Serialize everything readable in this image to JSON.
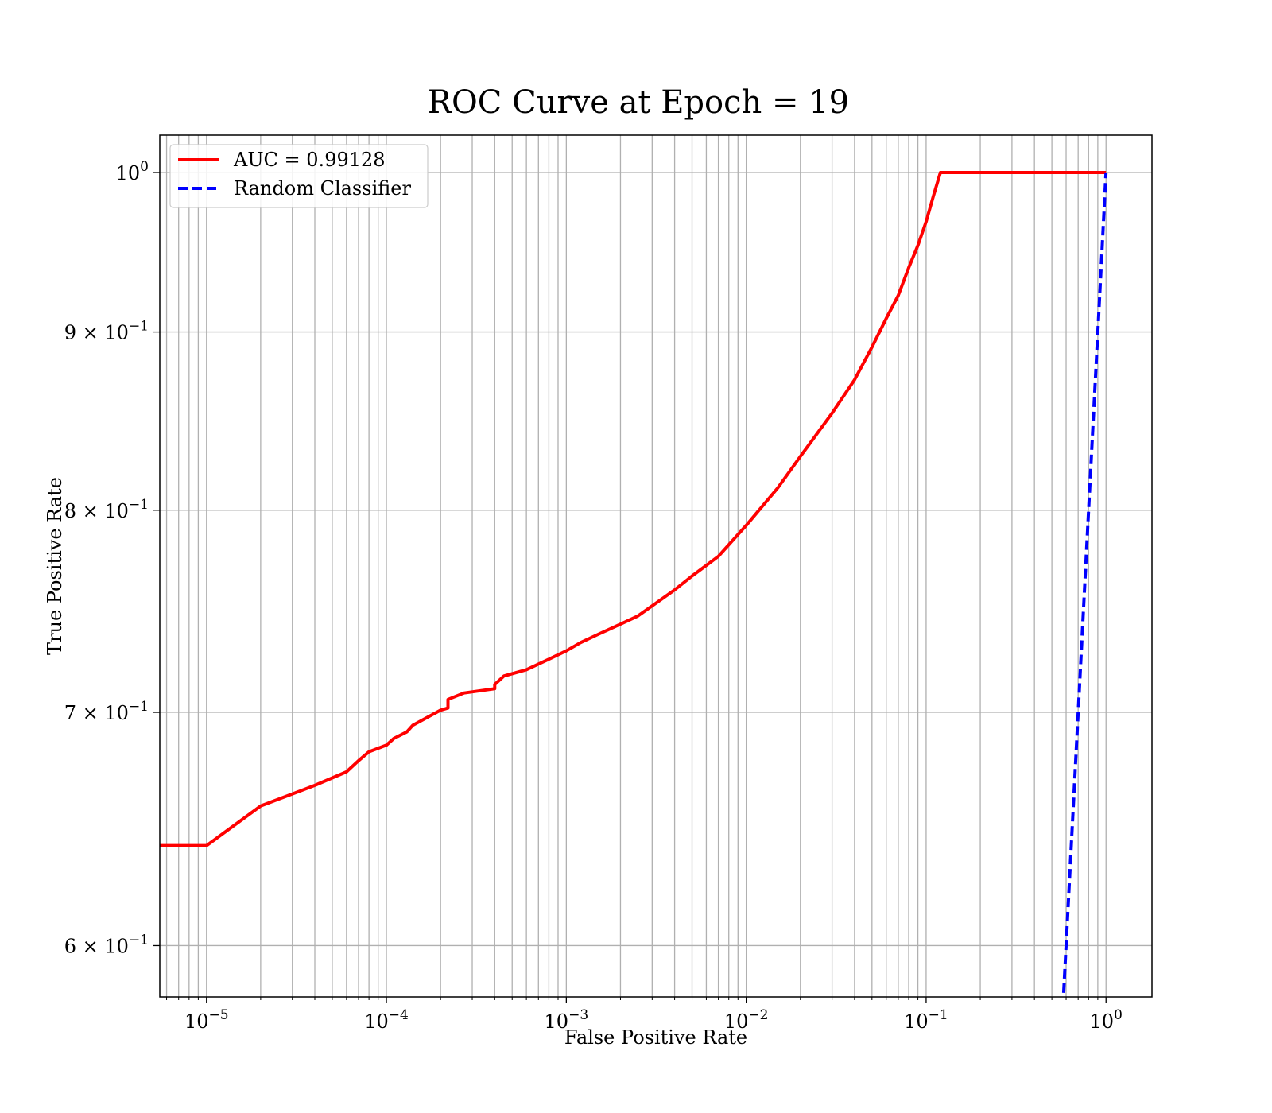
{
  "chart_data": {
    "type": "line",
    "title": "ROC Curve at Epoch = 19",
    "xlabel": "False Positive Rate",
    "ylabel": "True Positive Rate",
    "xscale": "log",
    "yscale": "log",
    "xlim": [
      5.5e-06,
      1.8
    ],
    "ylim": [
      0.58,
      1.025
    ],
    "grid": "both-major-and-minor-x",
    "legend_position": "top-left",
    "x_ticks": [
      {
        "value": 1e-05,
        "base": "10",
        "exp": "−5"
      },
      {
        "value": 0.0001,
        "base": "10",
        "exp": "−4"
      },
      {
        "value": 0.001,
        "base": "10",
        "exp": "−3"
      },
      {
        "value": 0.01,
        "base": "10",
        "exp": "−2"
      },
      {
        "value": 0.1,
        "base": "10",
        "exp": "−1"
      },
      {
        "value": 1,
        "base": "10",
        "exp": "0"
      }
    ],
    "y_ticks": [
      {
        "value": 1.0,
        "base": "10",
        "exp": "0"
      },
      {
        "value": 0.9,
        "base": "9 × 10",
        "exp": "−1"
      },
      {
        "value": 0.8,
        "base": "8 × 10",
        "exp": "−1"
      },
      {
        "value": 0.7,
        "base": "7 × 10",
        "exp": "−1"
      },
      {
        "value": 0.6,
        "base": "6 × 10",
        "exp": "−1"
      }
    ],
    "series": [
      {
        "name": "AUC = 0.99128",
        "color": "#ff0000",
        "style": "solid",
        "x": [
          5.5e-06,
          1e-05,
          2e-05,
          4e-05,
          6e-05,
          7e-05,
          8e-05,
          0.0001,
          0.00011,
          0.00013,
          0.00014,
          0.0002,
          0.00022,
          0.00022,
          0.00027,
          0.0004,
          0.0004,
          0.00045,
          0.0006,
          0.0008,
          0.001,
          0.0012,
          0.0015,
          0.002,
          0.0025,
          0.003,
          0.004,
          0.005,
          0.007,
          0.01,
          0.015,
          0.02,
          0.03,
          0.04,
          0.05,
          0.06,
          0.07,
          0.08,
          0.09,
          0.1,
          0.11,
          0.12,
          0.2,
          0.5,
          1.0
        ],
        "y": [
          0.641,
          0.641,
          0.658,
          0.667,
          0.673,
          0.678,
          0.682,
          0.685,
          0.688,
          0.691,
          0.694,
          0.701,
          0.702,
          0.706,
          0.709,
          0.711,
          0.713,
          0.717,
          0.72,
          0.725,
          0.729,
          0.733,
          0.737,
          0.742,
          0.746,
          0.751,
          0.759,
          0.766,
          0.776,
          0.792,
          0.812,
          0.829,
          0.853,
          0.872,
          0.891,
          0.908,
          0.922,
          0.939,
          0.953,
          0.968,
          0.985,
          1.0,
          1.0,
          1.0,
          1.0
        ]
      },
      {
        "name": "Random Classifier",
        "color": "#0000ff",
        "style": "dashed",
        "x": [
          0.56,
          0.6,
          0.7,
          0.8,
          0.9,
          1.0
        ],
        "y": [
          0.56,
          0.6,
          0.7,
          0.8,
          0.9,
          1.0
        ]
      }
    ]
  }
}
